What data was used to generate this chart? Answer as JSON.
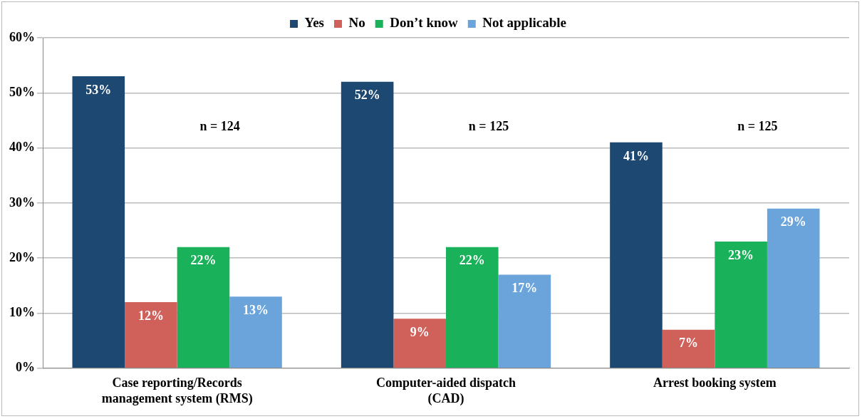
{
  "chart_data": {
    "type": "bar",
    "categories": [
      "Case reporting/Records management system (RMS)",
      "Computer-aided dispatch (CAD)",
      "Arrest booking system"
    ],
    "series": [
      {
        "name": "Yes",
        "color": "#1d4871",
        "values": [
          53,
          52,
          41
        ],
        "value_labels": [
          "53%",
          "52%",
          "41%"
        ]
      },
      {
        "name": "No",
        "color": "#d0605a",
        "values": [
          12,
          9,
          7
        ],
        "value_labels": [
          "12%",
          "9%",
          "7%"
        ]
      },
      {
        "name": "Don’t know",
        "color": "#19b15a",
        "values": [
          22,
          22,
          23
        ],
        "value_labels": [
          "22%",
          "22%",
          "23%"
        ]
      },
      {
        "name": "Not applicable",
        "color": "#6aa4db",
        "values": [
          13,
          17,
          29
        ],
        "value_labels": [
          "13%",
          "17%",
          "29%"
        ]
      }
    ],
    "ylim": [
      0,
      60
    ],
    "yticks": [
      {
        "value": 0,
        "label": "0%"
      },
      {
        "value": 10,
        "label": "10%"
      },
      {
        "value": 20,
        "label": "20%"
      },
      {
        "value": 30,
        "label": "30%"
      },
      {
        "value": 40,
        "label": "40%"
      },
      {
        "value": 50,
        "label": "50%"
      },
      {
        "value": 60,
        "label": "60%"
      }
    ],
    "grid": "y",
    "legend": "top",
    "annotations": [
      "n = 124",
      "n = 125",
      "n = 125"
    ]
  }
}
